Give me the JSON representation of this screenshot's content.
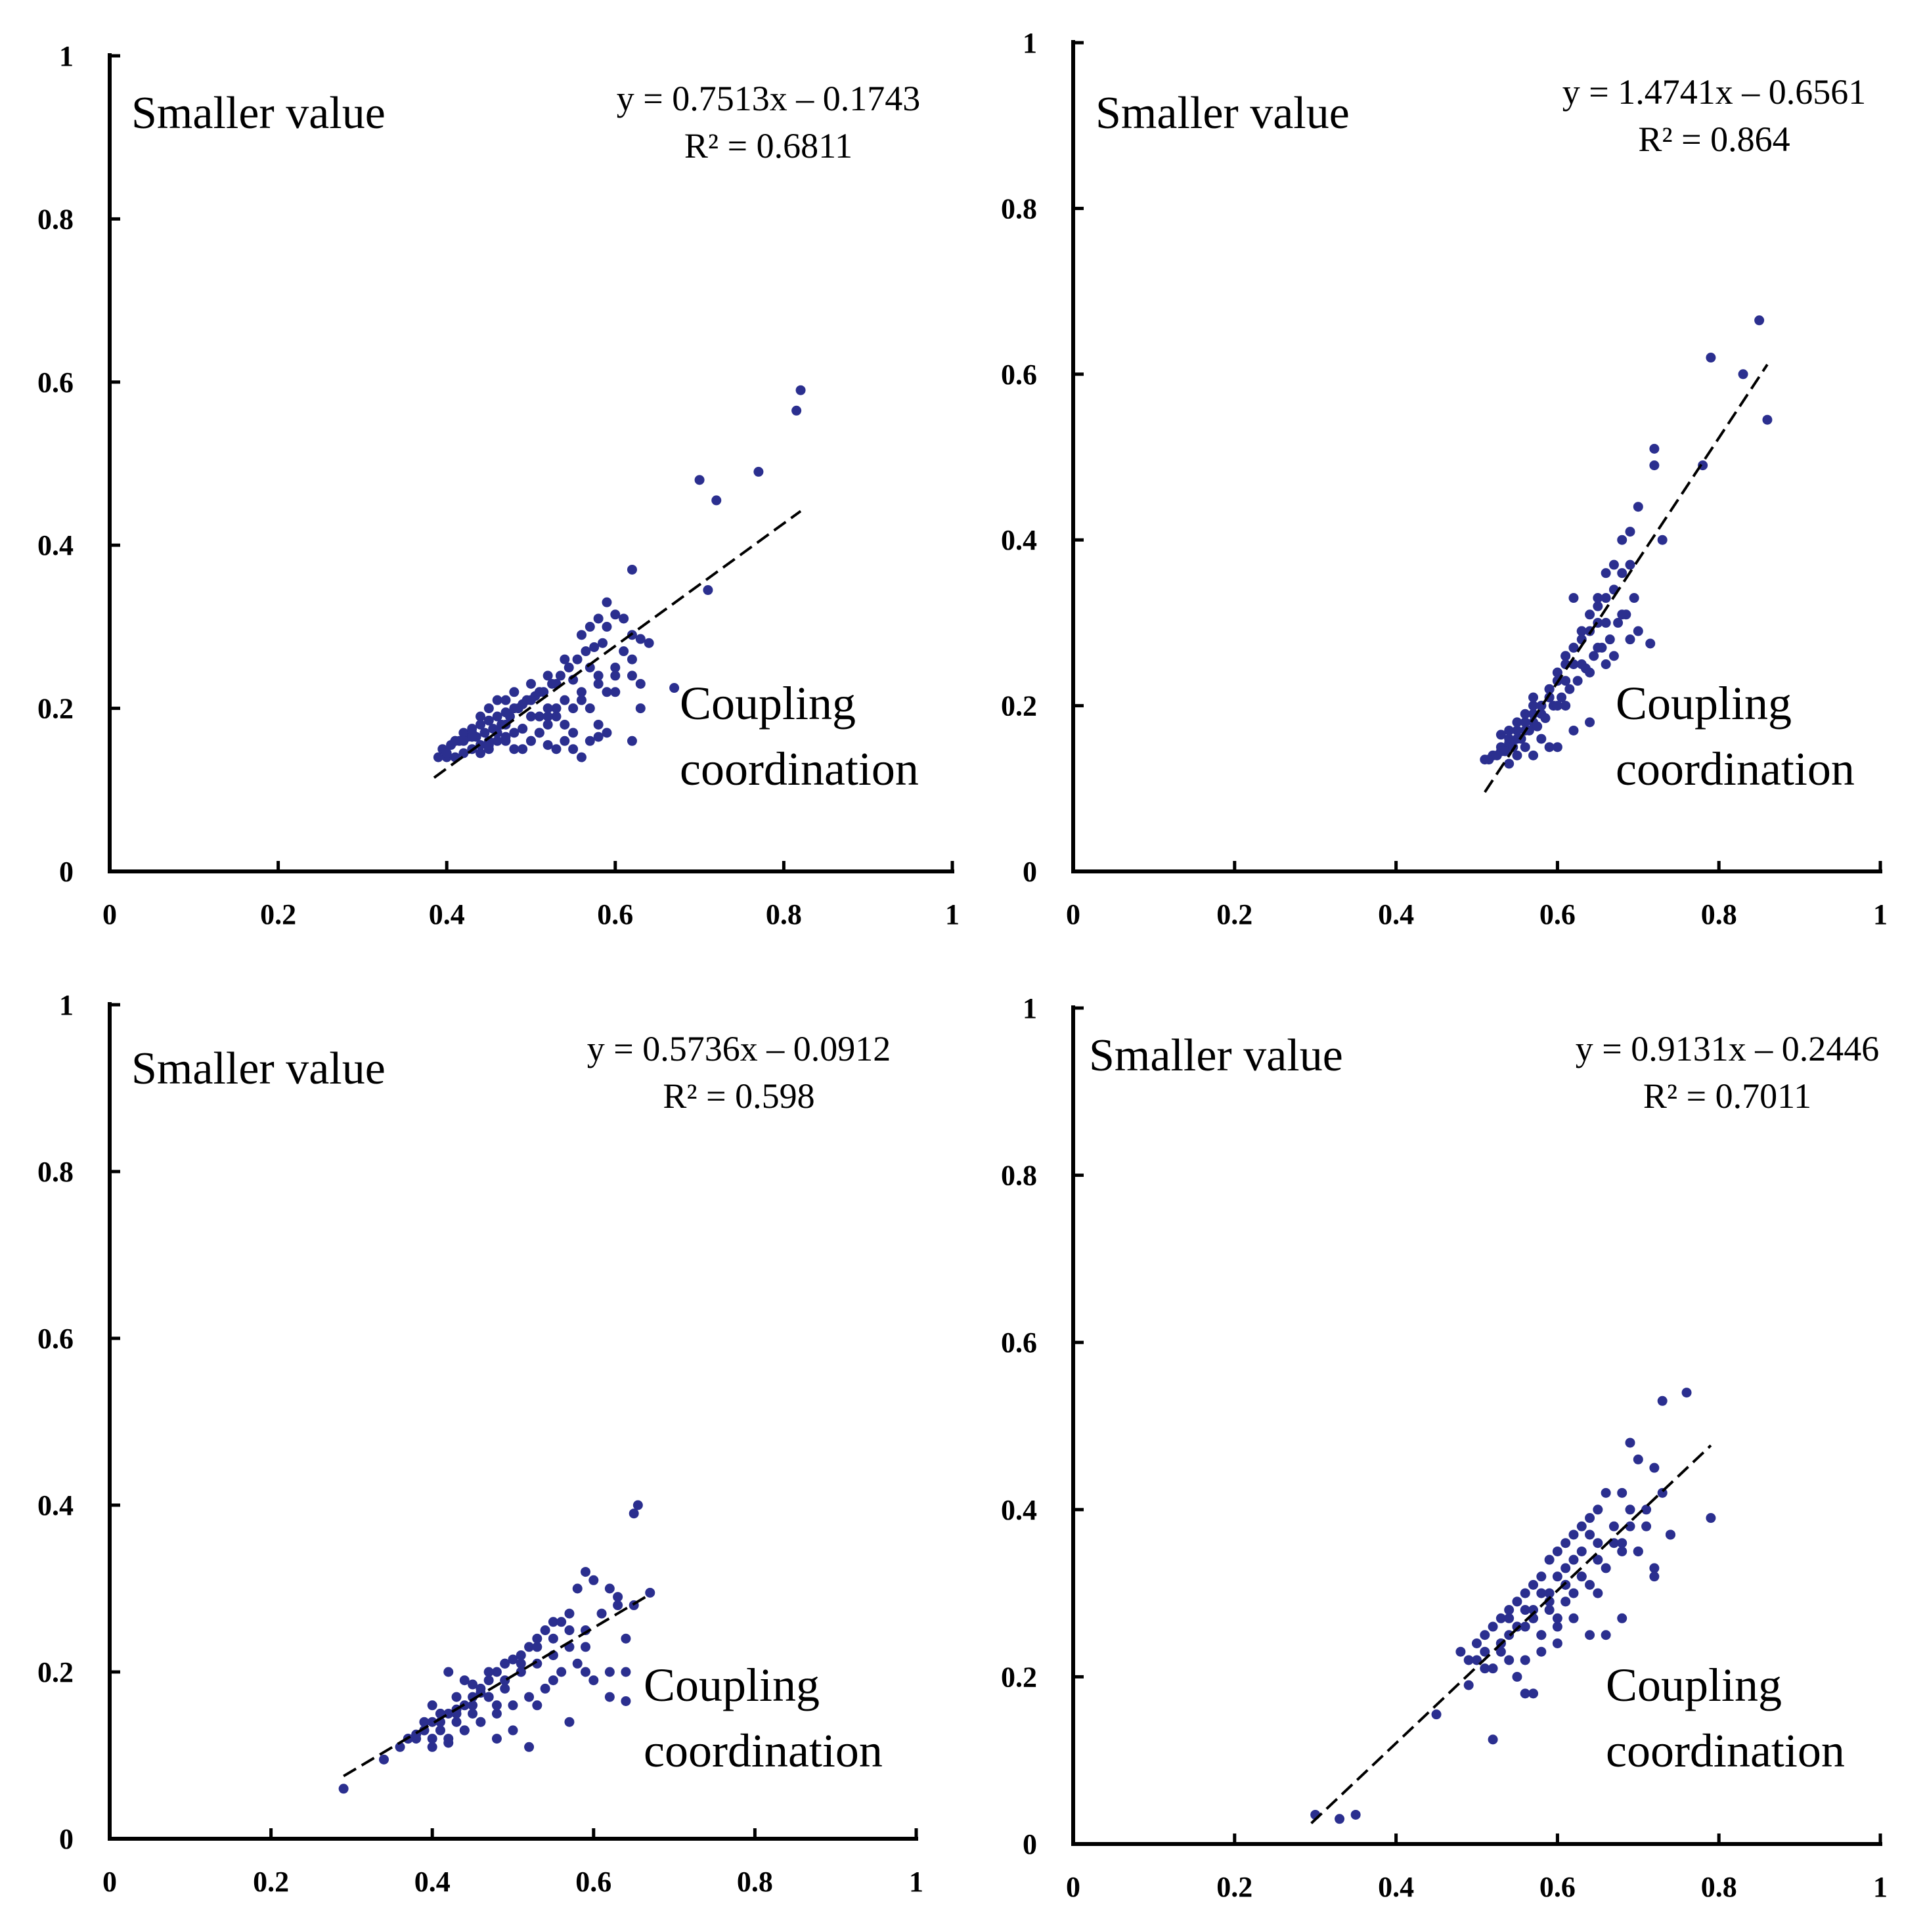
{
  "figure": {
    "panels": [
      {
        "label_y": "Smaller value",
        "label_x": [
          "Coupling",
          "coordination"
        ],
        "equation": "y = 0.7513x – 0.1743",
        "r2": "R² = 0.6811"
      },
      {
        "label_y": "Smaller value",
        "label_x": [
          "Coupling",
          "coordination"
        ],
        "equation": "y = 1.4741x – 0.6561",
        "r2": "R² = 0.864"
      },
      {
        "label_y": "Smaller value",
        "label_x": [
          "Coupling",
          "coordination"
        ],
        "equation": "y = 0.5736x – 0.0912",
        "r2": "R² = 0.598"
      },
      {
        "label_y": "Smaller value",
        "label_x": [
          "Coupling",
          "coordination"
        ],
        "equation": "y = 0.9131x – 0.2446",
        "r2": "R² = 0.7011"
      }
    ]
  },
  "chart_data": [
    {
      "type": "scatter",
      "title": "",
      "xlabel": "Coupling coordination",
      "ylabel": "Smaller value",
      "xlim": [
        0,
        1
      ],
      "ylim": [
        0,
        1
      ],
      "xticks": [
        "0",
        "0.2",
        "0.4",
        "0.6",
        "0.8",
        "1"
      ],
      "yticks": [
        "0",
        "0.2",
        "0.4",
        "0.6",
        "0.8",
        "1"
      ],
      "grid": false,
      "marker_color": "#2b2f8f",
      "trendline": {
        "slope": 0.7513,
        "intercept": -0.1743,
        "x_range": [
          0.385,
          0.82
        ],
        "style": "dashed",
        "equation": "y = 0.7513x – 0.1743",
        "r2": "R² = 0.6811"
      },
      "x": [
        0.82,
        0.815,
        0.77,
        0.7,
        0.72,
        0.71,
        0.62,
        0.59,
        0.6,
        0.61,
        0.58,
        0.57,
        0.63,
        0.62,
        0.61,
        0.64,
        0.67,
        0.62,
        0.6,
        0.59,
        0.58,
        0.57,
        0.56,
        0.55,
        0.54,
        0.53,
        0.52,
        0.51,
        0.5,
        0.49,
        0.48,
        0.47,
        0.46,
        0.45,
        0.44,
        0.43,
        0.42,
        0.41,
        0.4,
        0.39,
        0.395,
        0.405,
        0.415,
        0.425,
        0.435,
        0.445,
        0.455,
        0.465,
        0.475,
        0.485,
        0.495,
        0.505,
        0.515,
        0.525,
        0.535,
        0.545,
        0.555,
        0.565,
        0.575,
        0.585,
        0.59,
        0.56,
        0.54,
        0.52,
        0.5,
        0.48,
        0.46,
        0.44,
        0.42,
        0.41,
        0.43,
        0.45,
        0.47,
        0.49,
        0.51,
        0.53,
        0.55,
        0.57,
        0.58,
        0.56,
        0.53,
        0.51,
        0.49,
        0.47,
        0.45,
        0.43,
        0.44,
        0.46,
        0.48,
        0.5,
        0.52,
        0.54,
        0.55,
        0.57,
        0.59,
        0.6,
        0.62,
        0.63,
        0.58,
        0.55,
        0.52,
        0.5,
        0.48,
        0.46,
        0.45,
        0.47,
        0.49,
        0.51,
        0.53,
        0.56,
        0.58,
        0.6,
        0.62,
        0.63,
        0.54,
        0.52,
        0.5,
        0.47,
        0.44,
        0.42,
        0.4,
        0.41,
        0.43,
        0.45
      ],
      "y": [
        0.59,
        0.565,
        0.49,
        0.48,
        0.455,
        0.345,
        0.37,
        0.33,
        0.315,
        0.31,
        0.31,
        0.3,
        0.285,
        0.29,
        0.27,
        0.28,
        0.225,
        0.16,
        0.22,
        0.17,
        0.165,
        0.16,
        0.14,
        0.15,
        0.16,
        0.15,
        0.155,
        0.17,
        0.16,
        0.175,
        0.17,
        0.16,
        0.16,
        0.15,
        0.145,
        0.15,
        0.145,
        0.14,
        0.14,
        0.14,
        0.15,
        0.155,
        0.16,
        0.165,
        0.165,
        0.17,
        0.175,
        0.18,
        0.19,
        0.2,
        0.21,
        0.215,
        0.22,
        0.23,
        0.24,
        0.25,
        0.26,
        0.27,
        0.275,
        0.28,
        0.3,
        0.29,
        0.26,
        0.24,
        0.23,
        0.22,
        0.21,
        0.19,
        0.17,
        0.16,
        0.175,
        0.185,
        0.195,
        0.205,
        0.22,
        0.23,
        0.235,
        0.25,
        0.23,
        0.21,
        0.19,
        0.17,
        0.15,
        0.18,
        0.16,
        0.17,
        0.18,
        0.19,
        0.2,
        0.21,
        0.19,
        0.18,
        0.17,
        0.2,
        0.22,
        0.24,
        0.26,
        0.23,
        0.18,
        0.2,
        0.18,
        0.16,
        0.15,
        0.17,
        0.155,
        0.165,
        0.175,
        0.19,
        0.2,
        0.22,
        0.24,
        0.25,
        0.24,
        0.2,
        0.21,
        0.2,
        0.19,
        0.21,
        0.155,
        0.16,
        0.145,
        0.16,
        0.165,
        0.2
      ]
    },
    {
      "type": "scatter",
      "title": "",
      "xlabel": "Coupling coordination",
      "ylabel": "Smaller value",
      "xlim": [
        0,
        1
      ],
      "ylim": [
        0,
        1
      ],
      "xticks": [
        "0",
        "0.2",
        "0.4",
        "0.6",
        "0.8",
        "1"
      ],
      "yticks": [
        "0",
        "0.2",
        "0.4",
        "0.6",
        "0.8",
        "1"
      ],
      "grid": false,
      "marker_color": "#2b2f8f",
      "trendline": {
        "slope": 1.4741,
        "intercept": -0.6561,
        "x_range": [
          0.51,
          0.86
        ],
        "style": "dashed",
        "equation": "y = 1.4741x – 0.6561",
        "r2": "R² = 0.864"
      },
      "x": [
        0.85,
        0.79,
        0.83,
        0.86,
        0.72,
        0.72,
        0.78,
        0.7,
        0.73,
        0.69,
        0.68,
        0.69,
        0.67,
        0.68,
        0.66,
        0.67,
        0.66,
        0.65,
        0.64,
        0.65,
        0.64,
        0.63,
        0.63,
        0.62,
        0.62,
        0.61,
        0.61,
        0.6,
        0.6,
        0.59,
        0.59,
        0.58,
        0.58,
        0.57,
        0.57,
        0.56,
        0.56,
        0.55,
        0.55,
        0.54,
        0.54,
        0.53,
        0.53,
        0.52,
        0.52,
        0.51,
        0.515,
        0.525,
        0.535,
        0.545,
        0.555,
        0.565,
        0.575,
        0.585,
        0.595,
        0.605,
        0.615,
        0.625,
        0.635,
        0.645,
        0.655,
        0.665,
        0.675,
        0.685,
        0.695,
        0.715,
        0.69,
        0.67,
        0.66,
        0.64,
        0.62,
        0.6,
        0.58,
        0.56,
        0.54,
        0.53,
        0.55,
        0.57,
        0.59,
        0.61,
        0.63,
        0.65,
        0.6,
        0.59,
        0.61,
        0.6,
        0.62,
        0.64,
        0.58,
        0.57,
        0.56,
        0.55,
        0.54,
        0.59,
        0.6,
        0.61,
        0.63,
        0.65,
        0.66,
        0.68,
        0.7,
        0.62,
        0.57
      ],
      "y": [
        0.665,
        0.62,
        0.6,
        0.545,
        0.51,
        0.49,
        0.49,
        0.44,
        0.4,
        0.41,
        0.4,
        0.37,
        0.37,
        0.36,
        0.36,
        0.34,
        0.33,
        0.32,
        0.31,
        0.3,
        0.29,
        0.29,
        0.28,
        0.27,
        0.27,
        0.26,
        0.25,
        0.24,
        0.23,
        0.22,
        0.21,
        0.2,
        0.19,
        0.19,
        0.18,
        0.18,
        0.17,
        0.17,
        0.16,
        0.16,
        0.155,
        0.15,
        0.145,
        0.14,
        0.14,
        0.135,
        0.135,
        0.14,
        0.145,
        0.15,
        0.16,
        0.17,
        0.175,
        0.185,
        0.2,
        0.21,
        0.22,
        0.23,
        0.245,
        0.26,
        0.27,
        0.28,
        0.3,
        0.31,
        0.33,
        0.275,
        0.28,
        0.26,
        0.25,
        0.24,
        0.25,
        0.23,
        0.2,
        0.19,
        0.17,
        0.165,
        0.18,
        0.2,
        0.21,
        0.23,
        0.25,
        0.27,
        0.2,
        0.15,
        0.2,
        0.15,
        0.17,
        0.18,
        0.16,
        0.14,
        0.15,
        0.14,
        0.13,
        0.22,
        0.24,
        0.26,
        0.29,
        0.33,
        0.3,
        0.31,
        0.29,
        0.33,
        0.21
      ]
    },
    {
      "type": "scatter",
      "title": "",
      "xlabel": "Coupling coordination",
      "ylabel": "Smaller value",
      "xlim": [
        0,
        1
      ],
      "ylim": [
        0,
        1
      ],
      "xticks": [
        "0",
        "0.2",
        "0.4",
        "0.6",
        "0.8",
        "1"
      ],
      "yticks": [
        "0",
        "0.2",
        "0.4",
        "0.6",
        "0.8",
        "1"
      ],
      "grid": false,
      "marker_color": "#2b2f8f",
      "trendline": {
        "slope": 0.5736,
        "intercept": -0.0912,
        "x_range": [
          0.29,
          0.67
        ],
        "style": "dashed",
        "equation": "y = 0.5736x – 0.0912",
        "r2": "R² = 0.598"
      },
      "x": [
        0.29,
        0.34,
        0.36,
        0.37,
        0.38,
        0.39,
        0.4,
        0.41,
        0.42,
        0.43,
        0.44,
        0.45,
        0.46,
        0.47,
        0.48,
        0.49,
        0.5,
        0.51,
        0.52,
        0.53,
        0.54,
        0.55,
        0.56,
        0.57,
        0.58,
        0.59,
        0.6,
        0.62,
        0.63,
        0.64,
        0.65,
        0.655,
        0.67,
        0.62,
        0.64,
        0.59,
        0.57,
        0.55,
        0.53,
        0.51,
        0.49,
        0.47,
        0.45,
        0.43,
        0.41,
        0.4,
        0.42,
        0.44,
        0.46,
        0.48,
        0.5,
        0.52,
        0.54,
        0.56,
        0.58,
        0.6,
        0.59,
        0.57,
        0.55,
        0.53,
        0.51,
        0.49,
        0.47,
        0.45,
        0.43,
        0.41,
        0.39,
        0.38,
        0.4,
        0.42,
        0.44,
        0.46,
        0.48,
        0.5,
        0.52,
        0.48,
        0.46,
        0.44,
        0.42,
        0.4,
        0.37,
        0.39,
        0.41,
        0.43,
        0.45,
        0.47,
        0.49,
        0.51,
        0.53,
        0.55,
        0.57,
        0.59,
        0.61,
        0.63,
        0.65,
        0.64,
        0.62
      ],
      "y": [
        0.06,
        0.095,
        0.11,
        0.12,
        0.12,
        0.13,
        0.14,
        0.15,
        0.15,
        0.155,
        0.16,
        0.17,
        0.18,
        0.19,
        0.2,
        0.21,
        0.215,
        0.22,
        0.23,
        0.24,
        0.25,
        0.26,
        0.26,
        0.27,
        0.3,
        0.32,
        0.31,
        0.3,
        0.28,
        0.2,
        0.39,
        0.4,
        0.295,
        0.17,
        0.165,
        0.2,
        0.14,
        0.19,
        0.16,
        0.2,
        0.18,
        0.17,
        0.15,
        0.14,
        0.13,
        0.12,
        0.12,
        0.13,
        0.14,
        0.15,
        0.16,
        0.17,
        0.18,
        0.2,
        0.21,
        0.19,
        0.23,
        0.25,
        0.24,
        0.23,
        0.21,
        0.19,
        0.17,
        0.16,
        0.15,
        0.14,
        0.13,
        0.125,
        0.11,
        0.115,
        0.13,
        0.14,
        0.12,
        0.13,
        0.11,
        0.16,
        0.175,
        0.19,
        0.2,
        0.16,
        0.12,
        0.14,
        0.15,
        0.17,
        0.185,
        0.2,
        0.21,
        0.2,
        0.21,
        0.22,
        0.23,
        0.25,
        0.27,
        0.29,
        0.28,
        0.24,
        0.2
      ]
    },
    {
      "type": "scatter",
      "title": "",
      "xlabel": "Coupling coordination",
      "ylabel": "Smaller value",
      "xlim": [
        0,
        1
      ],
      "ylim": [
        0,
        1
      ],
      "xticks": [
        "0",
        "0.2",
        "0.4",
        "0.6",
        "0.8",
        "1"
      ],
      "yticks": [
        "0",
        "0.2",
        "0.4",
        "0.6",
        "0.8",
        "1"
      ],
      "grid": false,
      "marker_color": "#2b2f8f",
      "trendline": {
        "slope": 0.9131,
        "intercept": -0.2446,
        "x_range": [
          0.295,
          0.79
        ],
        "style": "dashed",
        "equation": "y = 0.9131x – 0.2446",
        "r2": "R² = 0.7011"
      },
      "x": [
        0.3,
        0.33,
        0.35,
        0.45,
        0.49,
        0.5,
        0.52,
        0.76,
        0.73,
        0.69,
        0.7,
        0.72,
        0.68,
        0.66,
        0.65,
        0.64,
        0.63,
        0.62,
        0.61,
        0.6,
        0.59,
        0.58,
        0.57,
        0.56,
        0.55,
        0.54,
        0.53,
        0.52,
        0.51,
        0.5,
        0.48,
        0.49,
        0.51,
        0.53,
        0.55,
        0.57,
        0.59,
        0.61,
        0.63,
        0.65,
        0.67,
        0.69,
        0.71,
        0.73,
        0.74,
        0.72,
        0.7,
        0.68,
        0.66,
        0.64,
        0.62,
        0.6,
        0.58,
        0.56,
        0.54,
        0.52,
        0.53,
        0.55,
        0.57,
        0.59,
        0.61,
        0.63,
        0.65,
        0.67,
        0.69,
        0.71,
        0.79,
        0.74,
        0.72,
        0.68,
        0.65,
        0.63,
        0.61,
        0.59,
        0.57,
        0.55,
        0.53,
        0.51,
        0.56,
        0.58,
        0.6,
        0.62,
        0.64,
        0.66,
        0.68,
        0.7,
        0.54,
        0.56,
        0.58,
        0.6,
        0.62,
        0.64,
        0.6,
        0.58,
        0.56,
        0.54,
        0.57,
        0.59,
        0.61
      ],
      "y": [
        0.035,
        0.03,
        0.035,
        0.155,
        0.19,
        0.22,
        0.125,
        0.54,
        0.53,
        0.48,
        0.46,
        0.45,
        0.42,
        0.42,
        0.4,
        0.39,
        0.38,
        0.37,
        0.36,
        0.35,
        0.34,
        0.32,
        0.31,
        0.3,
        0.29,
        0.28,
        0.27,
        0.26,
        0.25,
        0.24,
        0.23,
        0.22,
        0.23,
        0.24,
        0.26,
        0.27,
        0.29,
        0.31,
        0.32,
        0.34,
        0.36,
        0.38,
        0.4,
        0.42,
        0.37,
        0.33,
        0.35,
        0.27,
        0.25,
        0.25,
        0.27,
        0.26,
        0.25,
        0.22,
        0.22,
        0.21,
        0.24,
        0.26,
        0.28,
        0.3,
        0.33,
        0.35,
        0.36,
        0.38,
        0.4,
        0.38,
        0.39,
        0.37,
        0.32,
        0.36,
        0.3,
        0.32,
        0.29,
        0.28,
        0.18,
        0.2,
        0.23,
        0.21,
        0.18,
        0.25,
        0.27,
        0.3,
        0.31,
        0.33,
        0.35,
        0.35,
        0.27,
        0.28,
        0.3,
        0.32,
        0.34,
        0.37,
        0.24,
        0.23,
        0.26,
        0.25,
        0.27,
        0.29,
        0.31
      ]
    }
  ]
}
